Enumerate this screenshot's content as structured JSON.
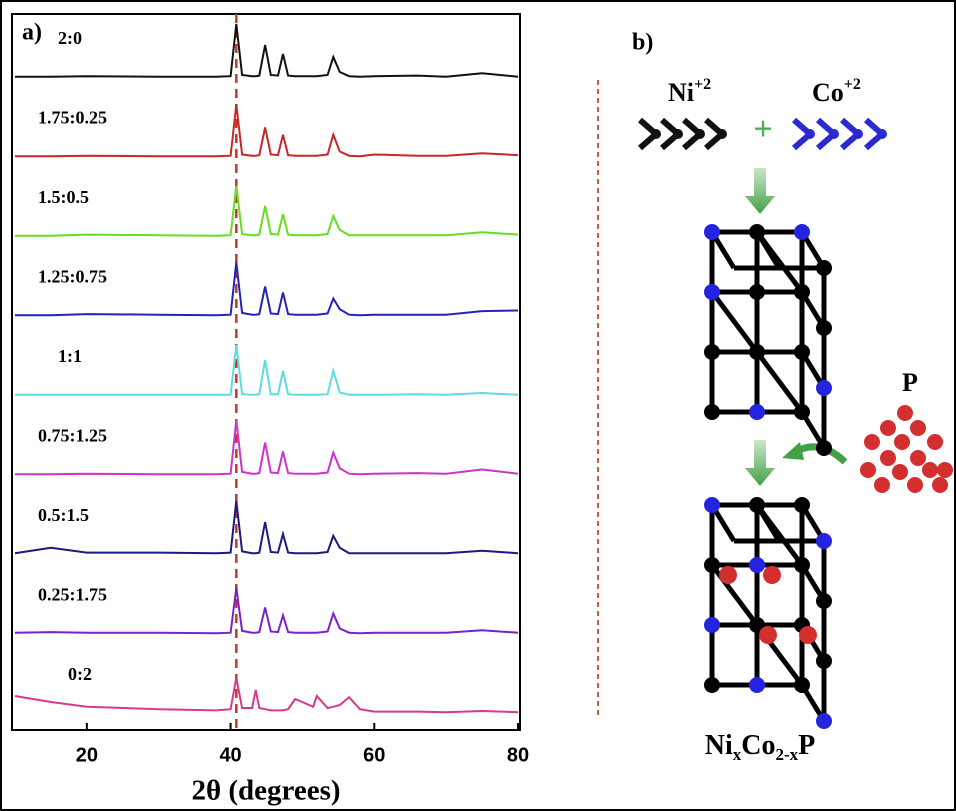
{
  "chart_data": {
    "type": "line",
    "panel_label": "a)",
    "xlabel": "2θ (degrees)",
    "x": [
      10,
      15,
      20,
      30,
      38,
      40,
      40.8,
      41.6,
      43,
      43.5,
      44,
      44.8,
      45.6,
      46.6,
      47.3,
      48,
      49,
      51.5,
      52,
      53.5,
      54.3,
      55.2,
      56.5,
      58,
      60,
      66,
      70,
      75,
      80
    ],
    "xlim": [
      10,
      80
    ],
    "xticks": [
      20,
      40,
      60,
      80
    ],
    "vline_x": 40.8,
    "vline_color": "#c0392b",
    "series": [
      {
        "name": "2:0",
        "color": "#111111",
        "values": [
          2,
          2,
          3,
          2,
          2,
          3,
          90,
          5,
          3,
          3,
          4,
          55,
          5,
          4,
          40,
          4,
          3,
          3,
          3,
          5,
          35,
          10,
          3,
          2,
          3,
          4,
          2,
          8,
          2
        ]
      },
      {
        "name": "1.75:0.25",
        "color": "#c62828",
        "values": [
          2,
          2,
          3,
          2,
          2,
          3,
          88,
          5,
          3,
          3,
          4,
          50,
          5,
          4,
          38,
          4,
          3,
          3,
          3,
          5,
          38,
          10,
          3,
          2,
          5,
          3,
          3,
          7,
          4
        ]
      },
      {
        "name": "1.5:0.5",
        "color": "#66dd22",
        "values": [
          2,
          2,
          4,
          3,
          2,
          3,
          85,
          5,
          3,
          3,
          4,
          52,
          5,
          4,
          38,
          4,
          3,
          3,
          3,
          5,
          35,
          12,
          3,
          3,
          3,
          3,
          3,
          8,
          4
        ]
      },
      {
        "name": "1.25:0.75",
        "color": "#2323bb",
        "values": [
          2,
          2,
          4,
          3,
          2,
          3,
          90,
          6,
          3,
          3,
          4,
          50,
          5,
          4,
          40,
          4,
          3,
          3,
          3,
          5,
          30,
          12,
          3,
          2,
          3,
          3,
          3,
          9,
          10
        ]
      },
      {
        "name": "1:1",
        "color": "#5fdcdc",
        "values": [
          2,
          2,
          2,
          2,
          2,
          2,
          85,
          3,
          2,
          2,
          3,
          60,
          3,
          3,
          42,
          3,
          2,
          2,
          2,
          3,
          42,
          6,
          2,
          2,
          2,
          3,
          2,
          5,
          2
        ]
      },
      {
        "name": "0.75:1.25",
        "color": "#cc33cc",
        "values": [
          2,
          2,
          3,
          2,
          2,
          3,
          92,
          6,
          3,
          3,
          4,
          55,
          5,
          4,
          40,
          4,
          3,
          3,
          3,
          5,
          38,
          12,
          3,
          2,
          3,
          4,
          3,
          10,
          3
        ]
      },
      {
        "name": "0.5:1.5",
        "color": "#1a1a80",
        "values": [
          3,
          12,
          4,
          4,
          3,
          4,
          90,
          6,
          3,
          3,
          4,
          55,
          5,
          4,
          35,
          4,
          3,
          3,
          3,
          5,
          32,
          12,
          3,
          3,
          3,
          3,
          3,
          7,
          3
        ]
      },
      {
        "name": "0.25:1.75",
        "color": "#7722cc",
        "values": [
          3,
          4,
          3,
          3,
          2,
          3,
          78,
          6,
          3,
          3,
          4,
          45,
          5,
          4,
          32,
          4,
          3,
          3,
          3,
          5,
          35,
          10,
          3,
          2,
          3,
          3,
          3,
          7,
          3
        ]
      },
      {
        "name": "0:2",
        "color": "#d63a8a",
        "values": [
          30,
          20,
          12,
          8,
          6,
          8,
          60,
          10,
          10,
          40,
          10,
          8,
          6,
          6,
          6,
          8,
          25,
          12,
          30,
          10,
          12,
          15,
          28,
          8,
          4,
          4,
          3,
          5,
          3
        ]
      }
    ]
  },
  "diagram": {
    "label": "b)",
    "reactant_1": {
      "symbol": "Ni",
      "charge": "+2"
    },
    "plus": "+",
    "reactant_2": {
      "symbol": "Co",
      "charge": "+2"
    },
    "phosphorus": "P",
    "product": {
      "a": "Ni",
      "sub_a": "x",
      "b": "Co",
      "sub_b": "2-x",
      "c": "P"
    }
  }
}
